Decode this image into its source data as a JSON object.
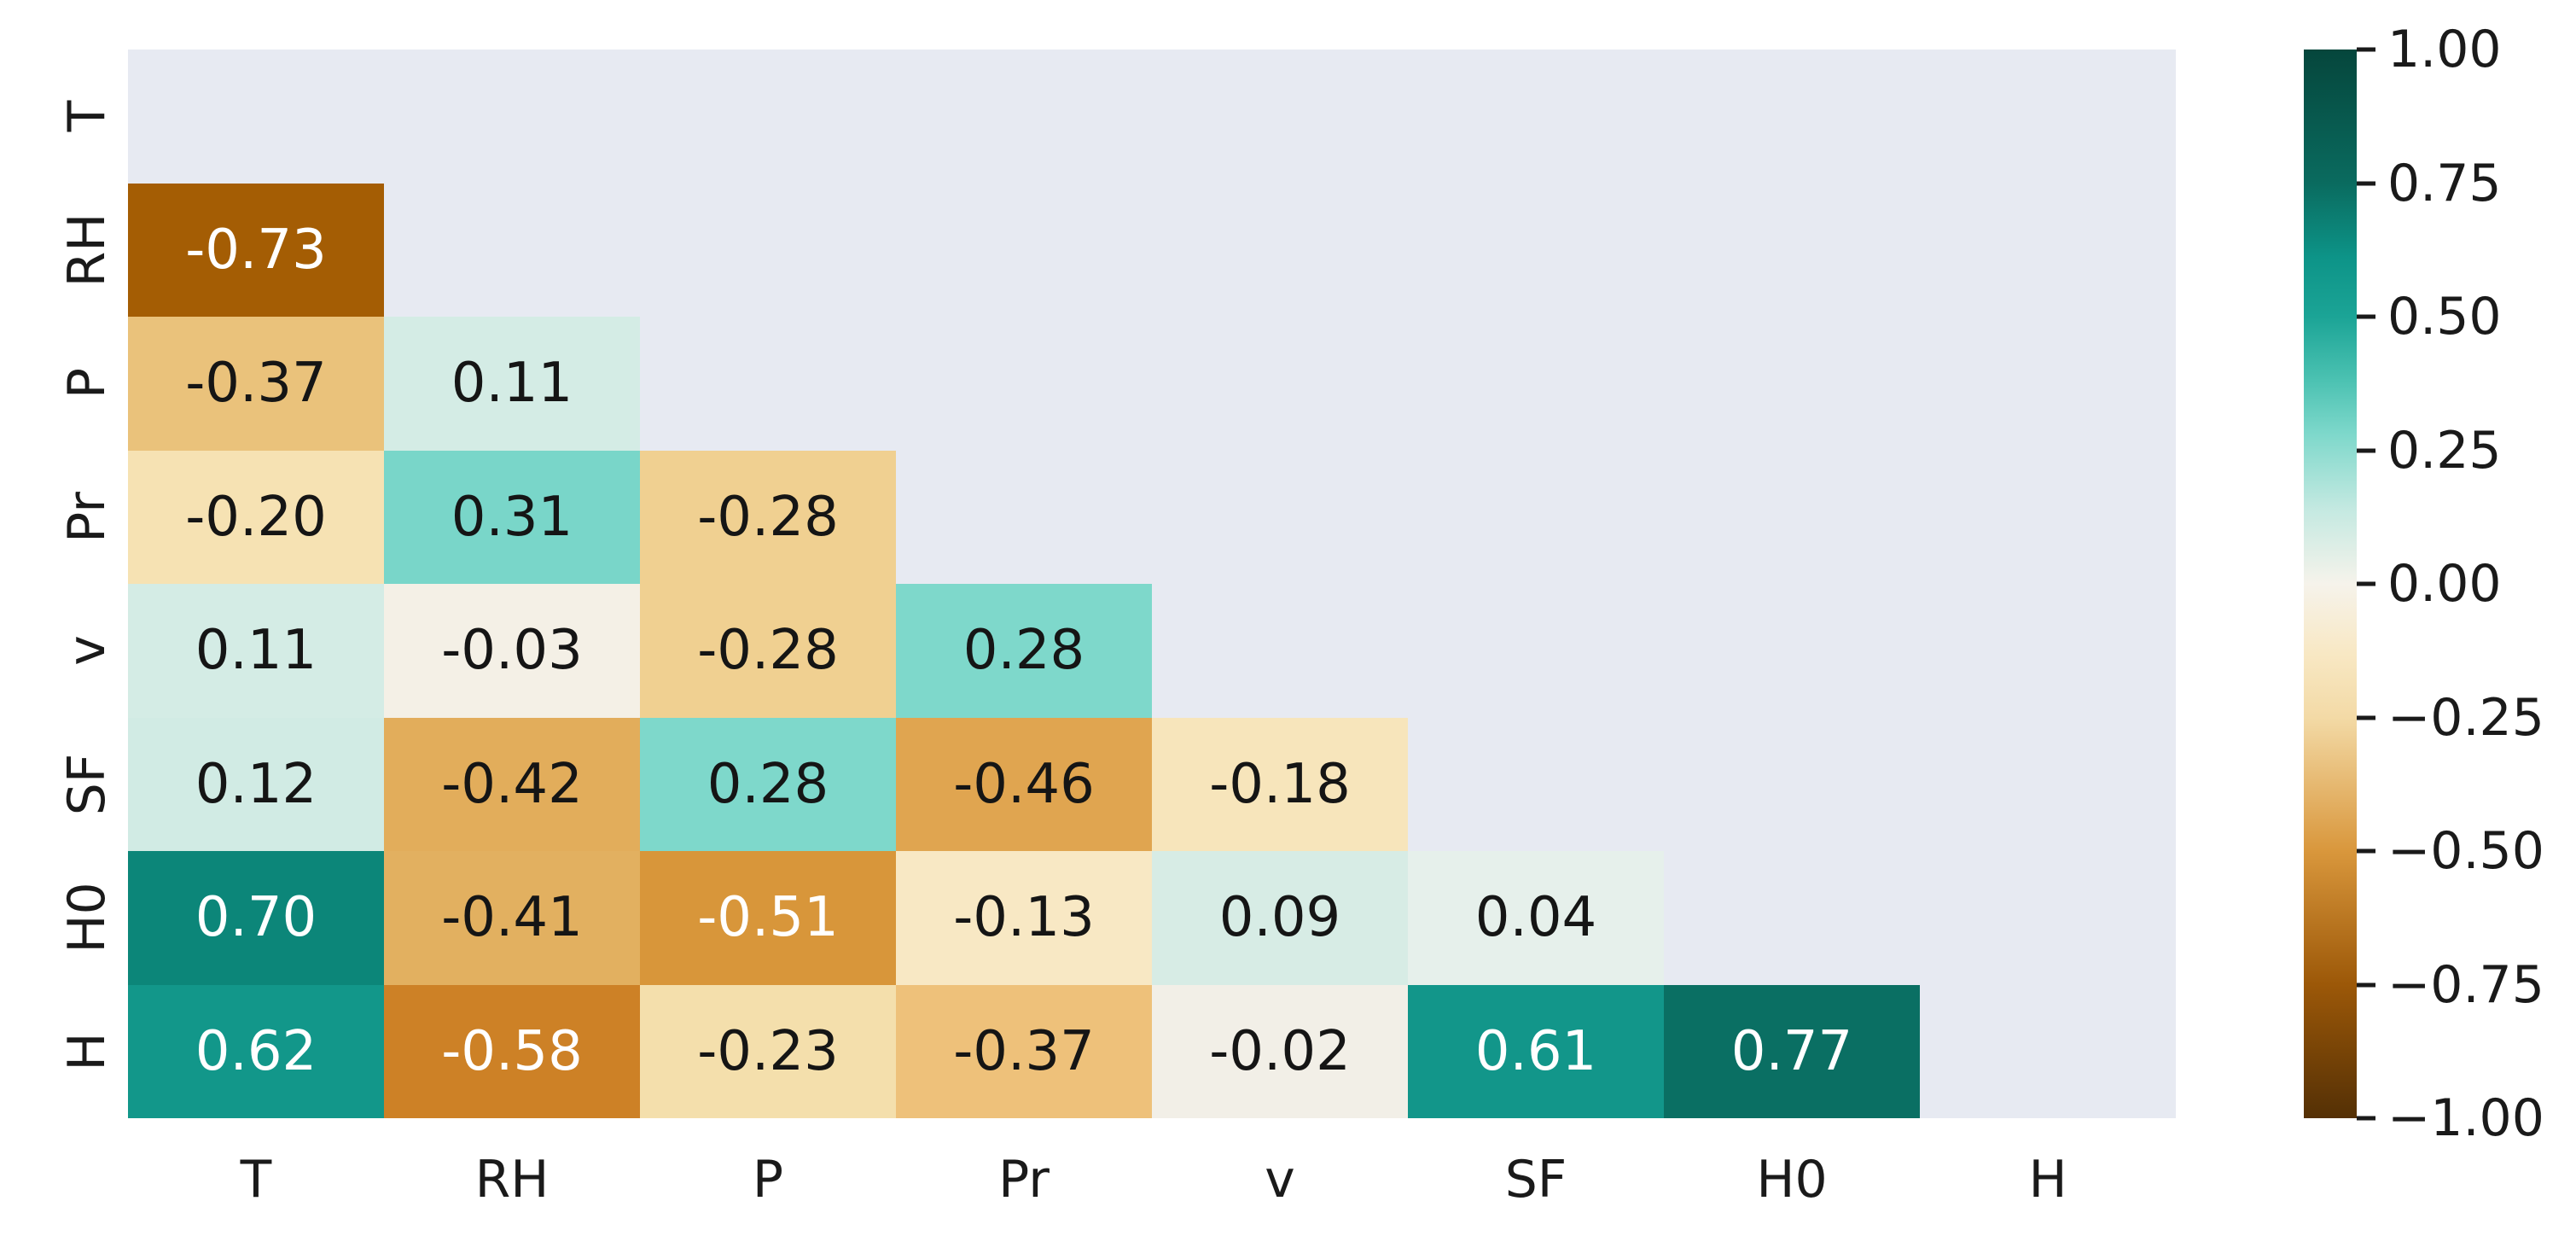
{
  "chart_data": {
    "type": "heatmap",
    "title": "",
    "description": "Lower-triangular correlation matrix heatmap with diverging brown-teal colormap",
    "x_labels": [
      "T",
      "RH",
      "P",
      "Pr",
      "v",
      "SF",
      "H0",
      "H"
    ],
    "y_labels": [
      "T",
      "RH",
      "P",
      "Pr",
      "v",
      "SF",
      "H0",
      "H"
    ],
    "vmin": -1,
    "vmax": 1,
    "masked_region": "upper triangle including diagonal",
    "masked_color": "#e7eaf2",
    "matrix": [
      [
        null,
        null,
        null,
        null,
        null,
        null,
        null,
        null
      ],
      [
        -0.73,
        null,
        null,
        null,
        null,
        null,
        null,
        null
      ],
      [
        -0.37,
        0.11,
        null,
        null,
        null,
        null,
        null,
        null
      ],
      [
        -0.2,
        0.31,
        -0.28,
        null,
        null,
        null,
        null,
        null
      ],
      [
        0.11,
        -0.03,
        -0.28,
        0.28,
        null,
        null,
        null,
        null
      ],
      [
        0.12,
        -0.42,
        0.28,
        -0.46,
        -0.18,
        null,
        null,
        null
      ],
      [
        0.7,
        -0.41,
        -0.51,
        -0.13,
        0.09,
        0.04,
        null,
        null
      ],
      [
        0.62,
        -0.58,
        -0.23,
        -0.37,
        -0.02,
        0.61,
        0.77,
        null
      ]
    ],
    "cell_colors": [
      [],
      [
        "#a45d04"
      ],
      [
        "#eac27b",
        "#d4ece5"
      ],
      [
        "#f6e2b3",
        "#79d6c9",
        "#f0d091"
      ],
      [
        "#d4ece5",
        "#f4f0e6",
        "#f0d091",
        "#7ed8cb"
      ],
      [
        "#d1ebe4",
        "#e2ad5b",
        "#7ed8cb",
        "#e0a550",
        "#f7e5bb"
      ],
      [
        "#0c8679",
        "#e2b060",
        "#d8963a",
        "#f8e8c4",
        "#d7ece5",
        "#e6f0eb"
      ],
      [
        "#12978a",
        "#cd8126",
        "#f4dfac",
        "#eec17a",
        "#f2efe7",
        "#12968a",
        "#0a6f63"
      ]
    ],
    "annotation_text_colors": {
      "light": "#ffffff",
      "dark": "#151515"
    },
    "annotation_light_text_threshold": 0.5,
    "value_format_decimals": 2,
    "grid": "off",
    "colorbar": {
      "position": "right",
      "ticks": [
        {
          "label": "1.00",
          "value": 1.0
        },
        {
          "label": "0.75",
          "value": 0.75
        },
        {
          "label": "0.50",
          "value": 0.5
        },
        {
          "label": "0.25",
          "value": 0.25
        },
        {
          "label": "0.00",
          "value": 0.0
        },
        {
          "label": "−0.25",
          "value": -0.25
        },
        {
          "label": "−0.50",
          "value": -0.5
        },
        {
          "label": "−0.75",
          "value": -0.75
        },
        {
          "label": "−1.00",
          "value": -1.0
        }
      ],
      "gradient_stops": [
        {
          "pos": 0.0,
          "color": "#05463c"
        },
        {
          "pos": 0.125,
          "color": "#0a6b5f"
        },
        {
          "pos": 0.195,
          "color": "#0d9488"
        },
        {
          "pos": 0.25,
          "color": "#1ba496"
        },
        {
          "pos": 0.31,
          "color": "#4cc2b2"
        },
        {
          "pos": 0.36,
          "color": "#7ed8cb"
        },
        {
          "pos": 0.43,
          "color": "#c4e9e1"
        },
        {
          "pos": 0.5,
          "color": "#f6f3eb"
        },
        {
          "pos": 0.565,
          "color": "#f8e8c4"
        },
        {
          "pos": 0.625,
          "color": "#f3daa6"
        },
        {
          "pos": 0.75,
          "color": "#d9973c"
        },
        {
          "pos": 0.875,
          "color": "#9c5808"
        },
        {
          "pos": 1.0,
          "color": "#543005"
        }
      ]
    }
  }
}
